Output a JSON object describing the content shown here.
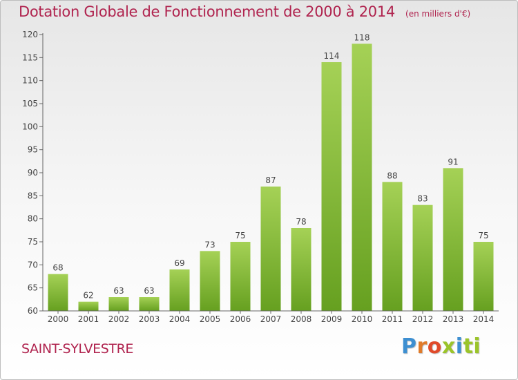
{
  "header": {
    "title": "Dotation Globale de Fonctionnement de 2000 à 2014",
    "unit": "(en milliers d'€)"
  },
  "footer": {
    "commune": "SAINT-SYLVESTRE",
    "logo_letters": [
      "P",
      "r",
      "o",
      "x",
      "i",
      "t",
      "i"
    ]
  },
  "colors": {
    "title": "#b0244f",
    "bar_light": "#9ccc4c",
    "bar_dark": "#6aa022",
    "axis": "#555555",
    "grid": "#d0d0d0"
  },
  "chart_data": {
    "type": "bar",
    "title": "Dotation Globale de Fonctionnement de 2000 à 2014",
    "unit": "(en milliers d'€)",
    "categories": [
      "2000",
      "2001",
      "2002",
      "2003",
      "2004",
      "2005",
      "2006",
      "2007",
      "2008",
      "2009",
      "2010",
      "2011",
      "2012",
      "2013",
      "2014"
    ],
    "values": [
      68,
      62,
      63,
      63,
      69,
      73,
      75,
      87,
      78,
      114,
      118,
      88,
      83,
      91,
      75
    ],
    "ylim": [
      60,
      120
    ],
    "yticks": [
      60,
      65,
      70,
      75,
      80,
      85,
      90,
      95,
      100,
      105,
      110,
      115,
      120
    ],
    "grid": false,
    "data_labels": true
  }
}
